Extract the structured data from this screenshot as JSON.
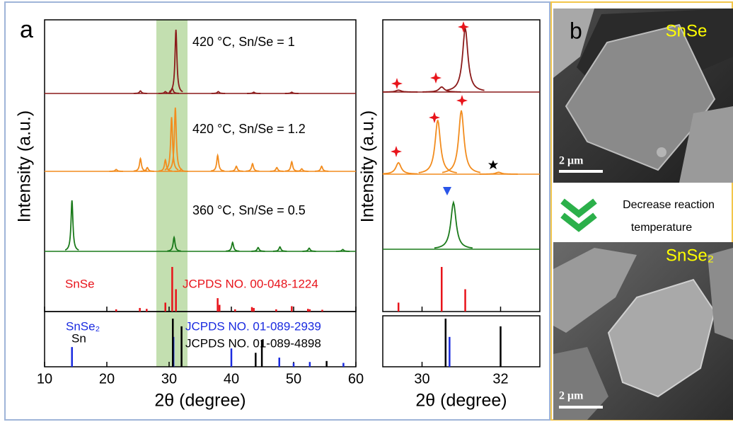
{
  "panel_a": {
    "label": "a",
    "ylabel": "Intensity (a.u.)",
    "xlabel": "2θ (degree)",
    "main": {
      "xlim": [
        10,
        60
      ],
      "xticks": [
        10,
        20,
        30,
        40,
        50,
        60
      ]
    },
    "zoom": {
      "xlim": [
        29,
        33
      ],
      "xticks": [
        30,
        32
      ]
    },
    "patterns": [
      {
        "name": "420 °C, Sn/Se = 1",
        "color": "#8b1a1a",
        "positions": [
          25.4,
          29.4,
          30.5,
          31.1,
          37.9,
          43.6,
          49.7
        ],
        "intensities": [
          4,
          3,
          8,
          100,
          3,
          2,
          2
        ]
      },
      {
        "name": "420 °C, Sn/Se = 1.2",
        "color": "#f28c1e",
        "positions": [
          21.5,
          25.4,
          26.5,
          29.4,
          30.4,
          31.0,
          31.95,
          37.8,
          40.8,
          43.4,
          47.3,
          49.7,
          51.3,
          54.5
        ],
        "intensities": [
          3,
          20,
          6,
          18,
          85,
          100,
          3,
          25,
          8,
          12,
          6,
          15,
          4,
          8
        ]
      },
      {
        "name": "360 °C, Sn/Se = 0.5",
        "color": "#1a7a1a",
        "positions": [
          14.4,
          30.8,
          40.2,
          44.3,
          47.8,
          52.5,
          57.9
        ],
        "intensities": [
          80,
          22,
          14,
          6,
          7,
          5,
          3
        ]
      }
    ],
    "references": [
      {
        "name": "SnSe",
        "card": "JCPDS NO. 00-048-1224",
        "color": "#e8141b",
        "positions": [
          21.5,
          25.3,
          26.4,
          29.4,
          30.5,
          31.1,
          37.8,
          38.1,
          40.6,
          43.3,
          43.6,
          47.2,
          49.7,
          52.3,
          52.6,
          54.6
        ],
        "intensities": [
          5,
          8,
          6,
          20,
          100,
          50,
          30,
          15,
          5,
          10,
          8,
          5,
          12,
          6,
          5,
          4
        ]
      },
      {
        "name": "SnSe₂",
        "card": "JCPDS NO. 01-089-2939",
        "color": "#1a2be0",
        "positions": [
          14.4,
          30.7,
          40.0,
          47.7,
          50.0,
          52.6,
          58.0
        ],
        "intensities": [
          41,
          62,
          38,
          19,
          8,
          10,
          8
        ]
      },
      {
        "name": "Sn",
        "card": "JCPDS NO. 01-089-4898",
        "color": "#000000",
        "positions": [
          30.6,
          32.0,
          43.9,
          44.9,
          55.3
        ],
        "intensities": [
          100,
          84,
          29,
          56,
          12
        ]
      }
    ]
  },
  "panel_b": {
    "label": "b",
    "top_image": {
      "label": "SnSe",
      "scale_bar": "2 μm"
    },
    "arrow_text": [
      "Decrease reaction",
      "temperature"
    ],
    "bottom_image": {
      "label": "SnSe₂",
      "scale_bar": "2 μm"
    }
  }
}
